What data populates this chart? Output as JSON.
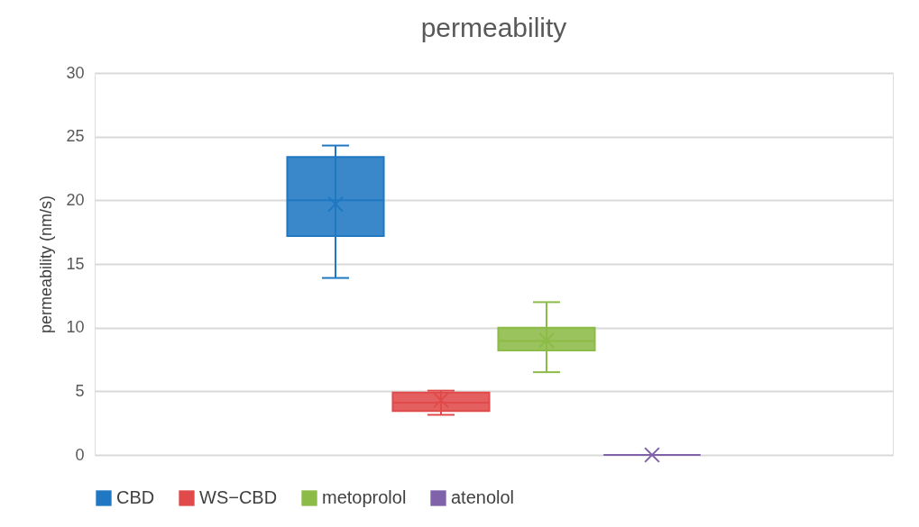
{
  "chart_data": {
    "type": "box",
    "title": "permeability",
    "ylabel": "permeability  (nm/s)",
    "categories": [
      null
    ],
    "ylim": [
      0,
      30
    ],
    "yticks": [
      0,
      5,
      10,
      15,
      20,
      25,
      30
    ],
    "grid": "y",
    "legend": "bottom",
    "series": [
      {
        "name": "CBD",
        "color": "#1f78c1",
        "boxes": [
          {
            "low": 13.9,
            "q1": 17.2,
            "median": 20,
            "q3": 23.4,
            "high": 24.3,
            "mean": 19.7
          }
        ]
      },
      {
        "name": "WS−CBD",
        "color": "#e04a4a",
        "boxes": [
          {
            "low": 3.15,
            "q1": 3.45,
            "median": 4.1,
            "q3": 4.9,
            "high": 5.05,
            "mean": 4.3
          }
        ]
      },
      {
        "name": "metoprolol",
        "color": "#8cbb47",
        "boxes": [
          {
            "low": 6.5,
            "q1": 8.2,
            "median": 8.95,
            "q3": 10,
            "high": 12,
            "mean": 9
          }
        ]
      },
      {
        "name": "atenolol",
        "color": "#8062aa",
        "boxes": [
          {
            "low": 0,
            "q1": 0,
            "median": 0,
            "q3": 0,
            "high": 0,
            "mean": 0
          }
        ]
      }
    ]
  }
}
